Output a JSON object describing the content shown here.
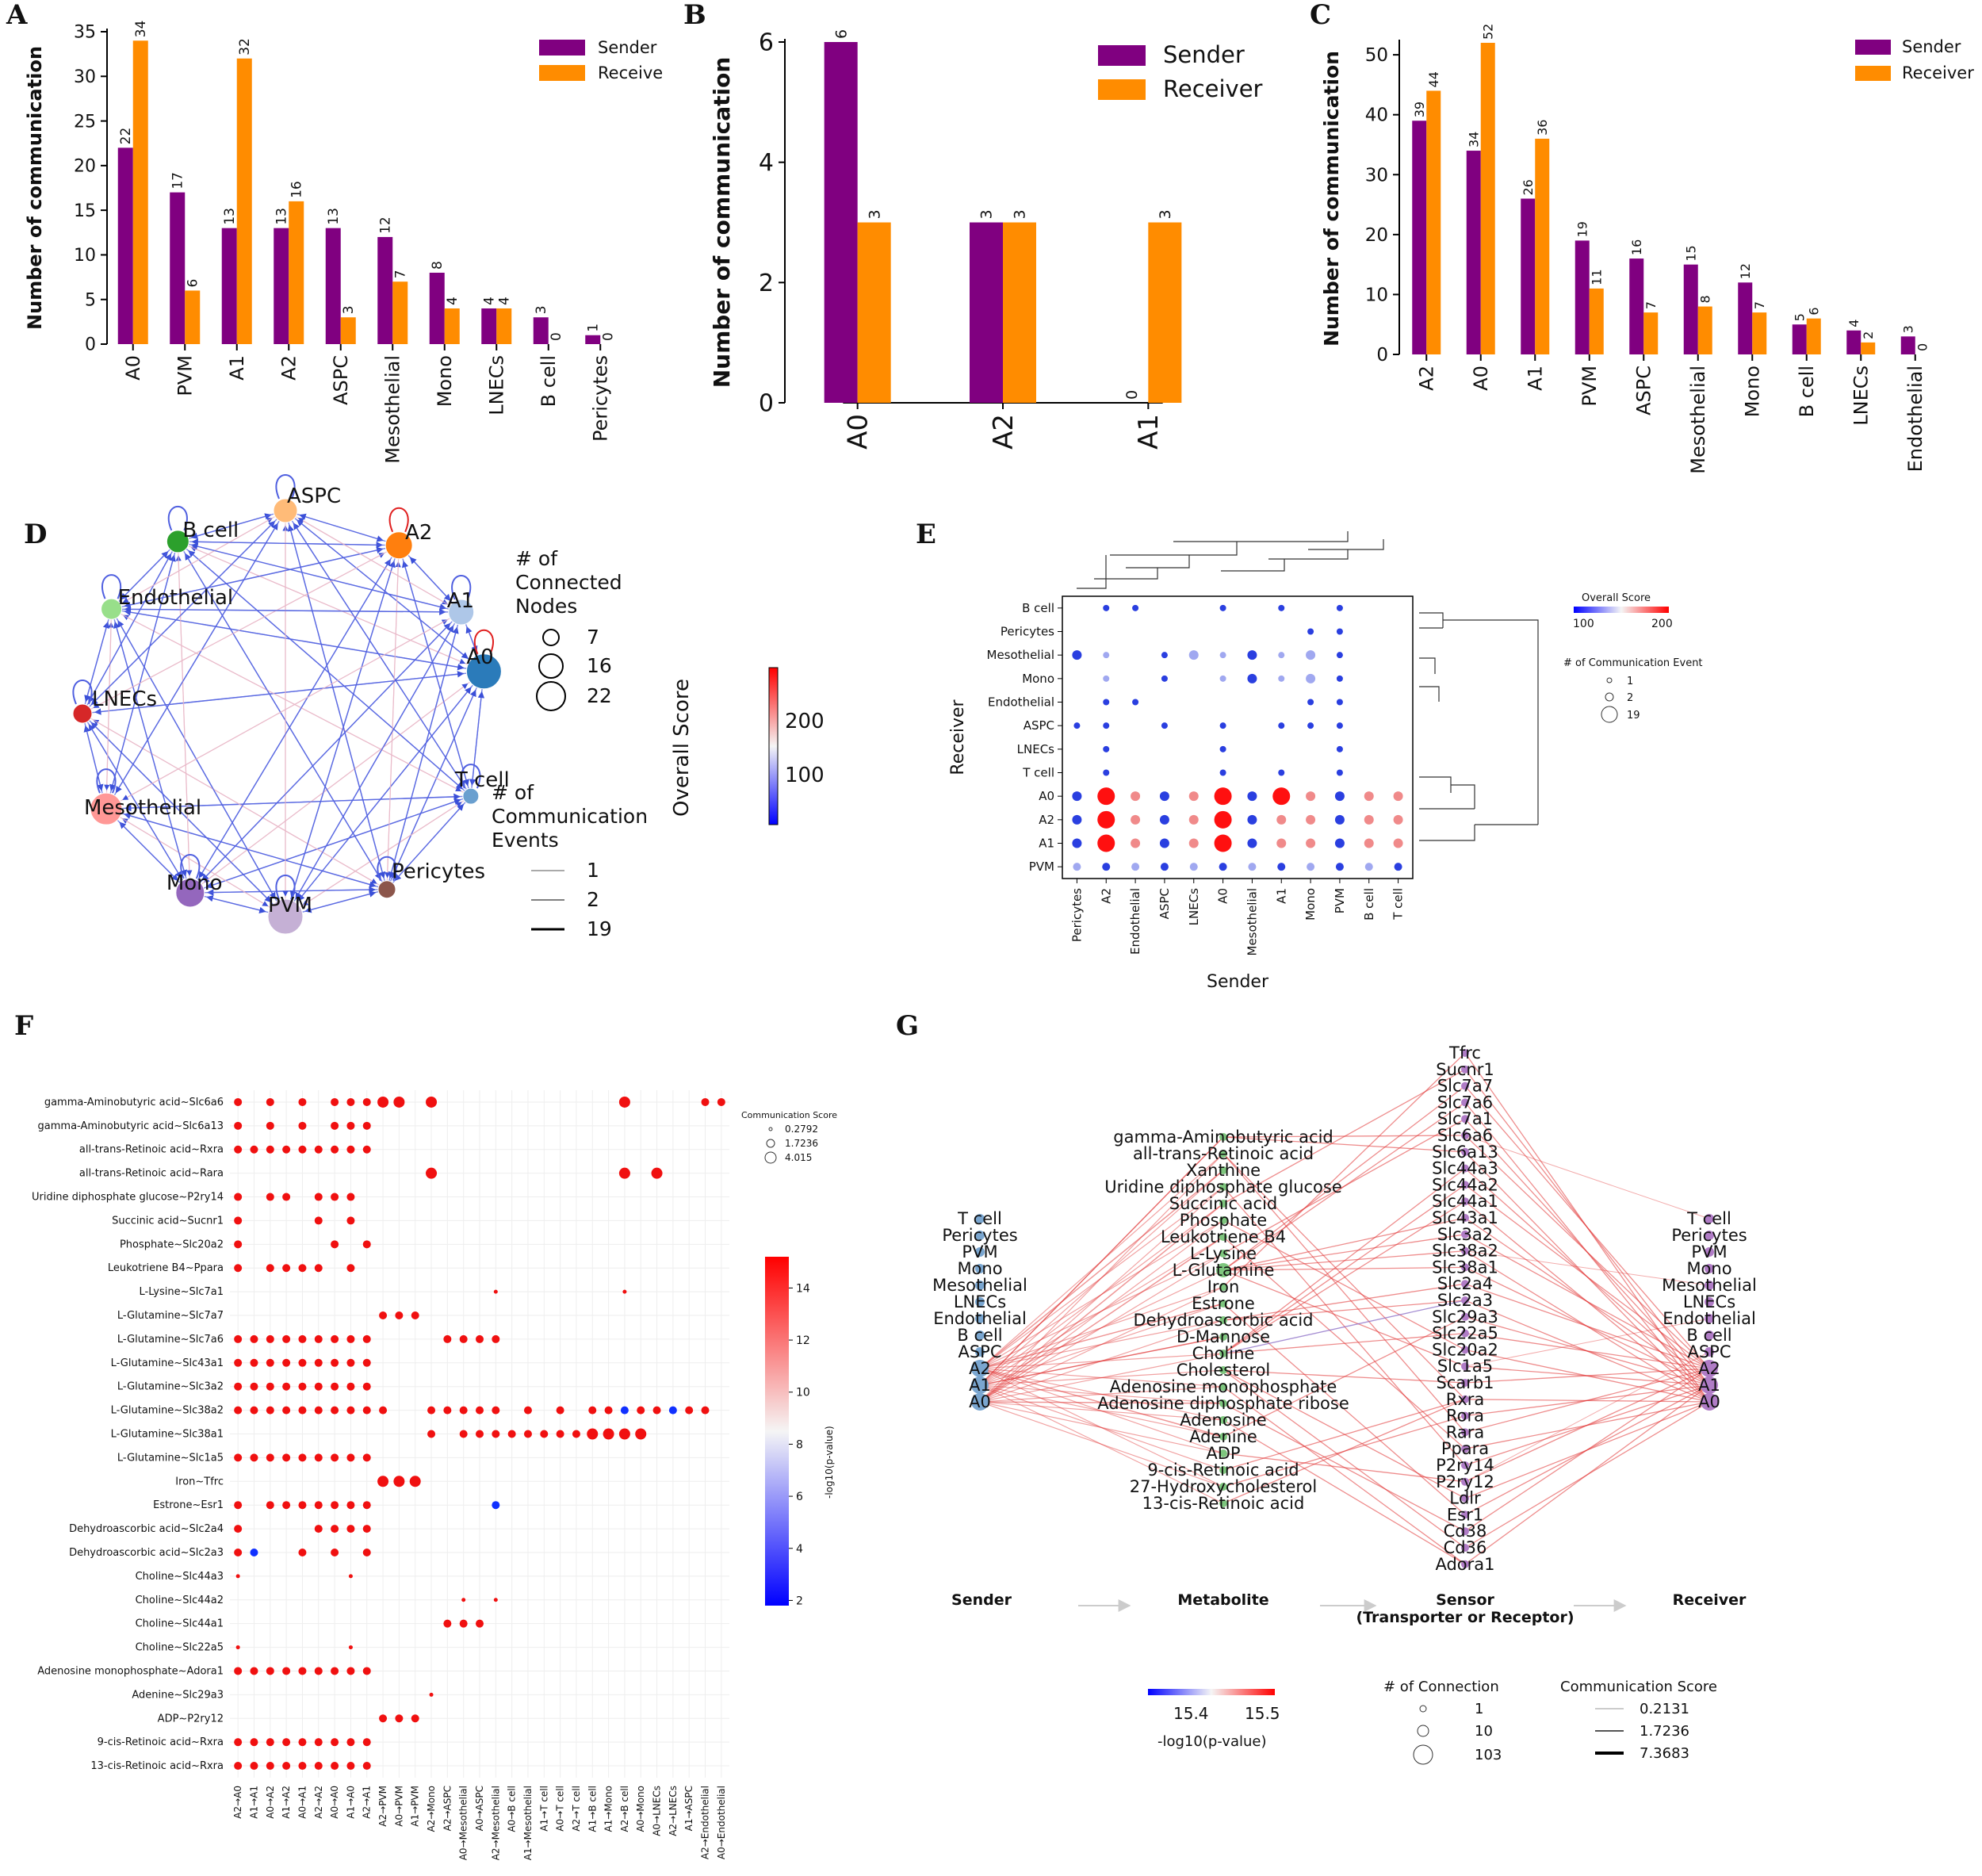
{
  "colors": {
    "sender": "#800080",
    "receiver": "#ff8c00",
    "axis": "#000000",
    "high": "#ff0000",
    "mid": "#f5f5f5",
    "low": "#0000ff",
    "source_node": "#7aa6d0",
    "metabolite_node": "#7ec67e",
    "sensor_node": "#b07cc6"
  },
  "panel_labels": [
    "A",
    "B",
    "C",
    "D",
    "E",
    "F",
    "G"
  ],
  "panelA": {
    "ylabel": "Number of communication",
    "ylim": [
      0,
      35
    ],
    "yticks": [
      0,
      5,
      10,
      15,
      20,
      25,
      30,
      35
    ],
    "legend": [
      "Sender",
      "Receive"
    ],
    "categories": [
      "A0",
      "PVM",
      "A1",
      "A2",
      "ASPC",
      "Mesothelial",
      "Mono",
      "LNECs",
      "B cell",
      "Pericytes"
    ],
    "sender": [
      22,
      17,
      13,
      13,
      13,
      12,
      8,
      4,
      3,
      1
    ],
    "receiver": [
      34,
      6,
      32,
      16,
      3,
      7,
      4,
      4,
      0,
      0
    ]
  },
  "panelB": {
    "ylabel": "Number of communication",
    "ylim": [
      0,
      6
    ],
    "yticks": [
      0,
      2,
      4,
      6
    ],
    "legend": [
      "Sender",
      "Receiver"
    ],
    "categories": [
      "A0",
      "A2",
      "A1"
    ],
    "sender": [
      6,
      3,
      0
    ],
    "receiver": [
      3,
      3,
      3
    ]
  },
  "panelC": {
    "ylabel": "Number of communication",
    "ylim": [
      0,
      52
    ],
    "yticks": [
      0,
      10,
      20,
      30,
      40,
      50
    ],
    "legend": [
      "Sender",
      "Receiver"
    ],
    "categories": [
      "A2",
      "A0",
      "A1",
      "PVM",
      "ASPC",
      "Mesothelial",
      "Mono",
      "B cell",
      "LNECs",
      "Endothelial"
    ],
    "sender": [
      39,
      34,
      26,
      19,
      16,
      15,
      12,
      5,
      4,
      3
    ],
    "receiver": [
      44,
      52,
      36,
      11,
      7,
      8,
      7,
      6,
      2,
      0
    ]
  },
  "panelD": {
    "nodes": [
      "A0",
      "T cell",
      "Pericytes",
      "PVM",
      "Mono",
      "Mesothelial",
      "LNECs",
      "Endothelial",
      "B cell",
      "ASPC",
      "A2",
      "A1"
    ],
    "node_colors": [
      "#2b7bba",
      "#6a9fcf",
      "#8c564b",
      "#c5b0d5",
      "#9467bd",
      "#ff9896",
      "#d62728",
      "#98df8a",
      "#2ca02c",
      "#ffbb78",
      "#ff7f0e",
      "#aec7e8"
    ],
    "size_legend_title": "# of Connected Nodes",
    "size_legend": [
      "7",
      "16",
      "22"
    ],
    "colorbar_title": "Overall Score",
    "colorbar_ticks": [
      "200",
      "100"
    ],
    "width_legend_title": "# of Communication Events",
    "width_legend": [
      "1",
      "2",
      "19"
    ]
  },
  "panelE": {
    "receivers": [
      "B cell",
      "Pericytes",
      "Mesothelial",
      "Mono",
      "Endothelial",
      "ASPC",
      "LNECs",
      "T cell",
      "A0",
      "A2",
      "A1",
      "PVM"
    ],
    "senders": [
      "Pericytes",
      "A2",
      "Endothelial",
      "ASPC",
      "LNECs",
      "A0",
      "Mesothelial",
      "A1",
      "Mono",
      "PVM",
      "B cell",
      "T cell"
    ],
    "xlabel": "Sender",
    "ylabel": "Receiver",
    "colorbar_title": "Overall Score",
    "colorbar_ticks": [
      "100",
      "200"
    ],
    "size_legend_title": "# of Communication Event",
    "size_legend": [
      "1",
      "2",
      "19"
    ]
  },
  "panelF": {
    "rows": [
      "gamma-Aminobutyric acid~Slc6a6",
      "gamma-Aminobutyric acid~Slc6a13",
      "all-trans-Retinoic acid~Rxra",
      "all-trans-Retinoic acid~Rara",
      "Uridine diphosphate glucose~P2ry14",
      "Succinic acid~Sucnr1",
      "Phosphate~Slc20a2",
      "Leukotriene B4~Ppara",
      "L-Lysine~Slc7a1",
      "L-Glutamine~Slc7a7",
      "L-Glutamine~Slc7a6",
      "L-Glutamine~Slc43a1",
      "L-Glutamine~Slc3a2",
      "L-Glutamine~Slc38a2",
      "L-Glutamine~Slc38a1",
      "L-Glutamine~Slc1a5",
      "Iron~Tfrc",
      "Estrone~Esr1",
      "Dehydroascorbic acid~Slc2a4",
      "Dehydroascorbic acid~Slc2a3",
      "Choline~Slc44a3",
      "Choline~Slc44a2",
      "Choline~Slc44a1",
      "Choline~Slc22a5",
      "Adenosine monophosphate~Adora1",
      "Adenine~Slc29a3",
      "ADP~P2ry12",
      "9-cis-Retinoic acid~Rxra",
      "13-cis-Retinoic acid~Rxra"
    ],
    "cols": [
      "A2→A0",
      "A1→A1",
      "A0→A2",
      "A1→A2",
      "A0→A1",
      "A2→A2",
      "A0→A0",
      "A1→A0",
      "A2→A1",
      "A2→PVM",
      "A0→PVM",
      "A1→PVM",
      "A2→Mono",
      "A2→ASPC",
      "A0→Mesothelial",
      "A0→ASPC",
      "A2→Mesothelial",
      "A0→B cell",
      "A1→Mesothelial",
      "A1→T cell",
      "A0→T cell",
      "A2→T cell",
      "A1→B cell",
      "A1→Mono",
      "A2→B cell",
      "A0→Mono",
      "A0→LNECs",
      "A2→LNECs",
      "A1→ASPC",
      "A2→Endothelial",
      "A0→Endothelial"
    ],
    "size_legend_title": "Communication Score",
    "size_legend": [
      "0.2792",
      "1.7236",
      "4.015"
    ],
    "colorbar_title": "-log10(p-value)",
    "colorbar_ticks": [
      "2",
      "4",
      "6",
      "8",
      "10",
      "12",
      "14"
    ]
  },
  "panelG": {
    "left": [
      "T cell",
      "Pericytes",
      "PVM",
      "Mono",
      "Mesothelial",
      "LNECs",
      "Endothelial",
      "B cell",
      "ASPC",
      "A2",
      "A1",
      "A0"
    ],
    "metabolites": [
      "gamma-Aminobutyric acid",
      "all-trans-Retinoic acid",
      "Xanthine",
      "Uridine diphosphate glucose",
      "Succinic acid",
      "Phosphate",
      "Leukotriene B4",
      "L-Lysine",
      "L-Glutamine",
      "Iron",
      "Estrone",
      "Dehydroascorbic acid",
      "D-Mannose",
      "Choline",
      "Cholesterol",
      "Adenosine monophosphate",
      "Adenosine diphosphate ribose",
      "Adenosine",
      "Adenine",
      "ADP",
      "9-cis-Retinoic acid",
      "27-Hydroxycholesterol",
      "13-cis-Retinoic acid"
    ],
    "sensors": [
      "Tfrc",
      "Sucnr1",
      "Slc7a7",
      "Slc7a6",
      "Slc7a1",
      "Slc6a6",
      "Slc6a13",
      "Slc44a3",
      "Slc44a2",
      "Slc44a1",
      "Slc43a1",
      "Slc3a2",
      "Slc38a2",
      "Slc38a1",
      "Slc2a4",
      "Slc2a3",
      "Slc29a3",
      "Slc22a5",
      "Slc20a2",
      "Slc1a5",
      "Scarb1",
      "Rxra",
      "Rora",
      "Rara",
      "Ppara",
      "P2ry14",
      "P2ry12",
      "Ldlr",
      "Esr1",
      "Cd38",
      "Cd36",
      "Adora1"
    ],
    "right": [
      "T cell",
      "Pericytes",
      "PVM",
      "Mono",
      "Mesothelial",
      "LNECs",
      "Endothelial",
      "B cell",
      "ASPC",
      "A2",
      "A1",
      "A0"
    ],
    "stages": [
      "Sender",
      "Metabolite",
      "Sensor",
      "(Transporter or Receptor)",
      "Receiver"
    ],
    "colorbar_ticks": [
      "15.4",
      "15.5"
    ],
    "colorbar_title": "-log10(p-value)",
    "conn_legend_title": "# of Connection",
    "conn_legend": [
      "1",
      "10",
      "103"
    ],
    "score_legend_title": "Communication Score",
    "score_legend": [
      "0.2131",
      "1.7236",
      "7.3683"
    ]
  }
}
